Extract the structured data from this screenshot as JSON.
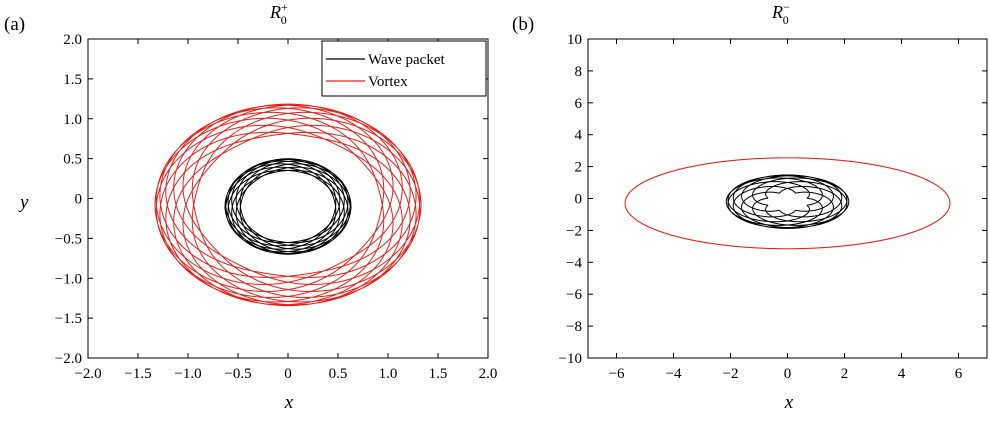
{
  "figure": {
    "panels": [
      {
        "label": "(a)",
        "title_main": "R",
        "title_sub": "0",
        "title_sup": "+"
      },
      {
        "label": "(b)",
        "title_main": "R",
        "title_sub": "0",
        "title_sup": "−"
      }
    ]
  },
  "chart_data": [
    {
      "type": "line",
      "panel": "(a)",
      "title": "R0+",
      "xlabel": "x",
      "ylabel": "y",
      "xlim": [
        -2.0,
        2.0
      ],
      "ylim": [
        -2.0,
        2.0
      ],
      "xticks": [
        -2.0,
        -1.5,
        -1.0,
        -0.5,
        0,
        0.5,
        1.0,
        1.5,
        2.0
      ],
      "yticks": [
        -2.0,
        -1.5,
        -1.0,
        -0.5,
        0,
        0.5,
        1.0,
        1.5,
        2.0
      ],
      "xtick_labels": [
        "−2.0",
        "−1.5",
        "−1.0",
        "−0.5",
        "0",
        "0.5",
        "1.0",
        "1.5",
        "2.0"
      ],
      "ytick_labels": [
        "−2.0",
        "−1.5",
        "−1.0",
        "−0.5",
        "0",
        "0.5",
        "1.0",
        "1.5",
        "2.0"
      ],
      "legend": {
        "position": "top-right",
        "entries": [
          "Wave packet",
          "Vortex"
        ]
      },
      "grid": false,
      "series": [
        {
          "name": "Wave packet",
          "color": "#000000",
          "pattern": "epicycloid",
          "R": 0.55,
          "r": 0.08,
          "aspect": 0.95,
          "cx": 0,
          "cy": -0.1,
          "k": 23,
          "turns": 11
        },
        {
          "name": "Vortex",
          "color": "#e8201a",
          "pattern": "epicycloid",
          "R": 1.13,
          "r": 0.2,
          "aspect": 0.95,
          "cx": 0,
          "cy": -0.08,
          "k": 29,
          "turns": 13
        }
      ]
    },
    {
      "type": "line",
      "panel": "(b)",
      "title": "R0−",
      "xlabel": "x",
      "ylabel": "",
      "xlim": [
        -7,
        7
      ],
      "ylim": [
        -10,
        10
      ],
      "xticks": [
        -6,
        -4,
        -2,
        0,
        2,
        4,
        6
      ],
      "yticks": [
        -10,
        -8,
        -6,
        -4,
        -2,
        0,
        2,
        4,
        6,
        8,
        10
      ],
      "xtick_labels": [
        "−6",
        "−4",
        "−2",
        "0",
        "2",
        "4",
        "6"
      ],
      "ytick_labels": [
        "−10",
        "−8",
        "−6",
        "−4",
        "−2",
        "0",
        "2",
        "4",
        "6",
        "8",
        "10"
      ],
      "grid": false,
      "series": [
        {
          "name": "Wave packet",
          "color": "#000000",
          "pattern": "epicycloid",
          "R": 1.45,
          "r": 0.7,
          "aspect": 0.78,
          "cx": 0,
          "cy": -0.2,
          "k": 17,
          "turns": 9
        },
        {
          "name": "Vortex",
          "color": "#e8201a",
          "pattern": "epicycloid",
          "R": 3.5,
          "r": 2.2,
          "aspect": 0.5,
          "cx": 0,
          "cy": -0.3,
          "k": 13,
          "turns": 13
        }
      ]
    }
  ]
}
